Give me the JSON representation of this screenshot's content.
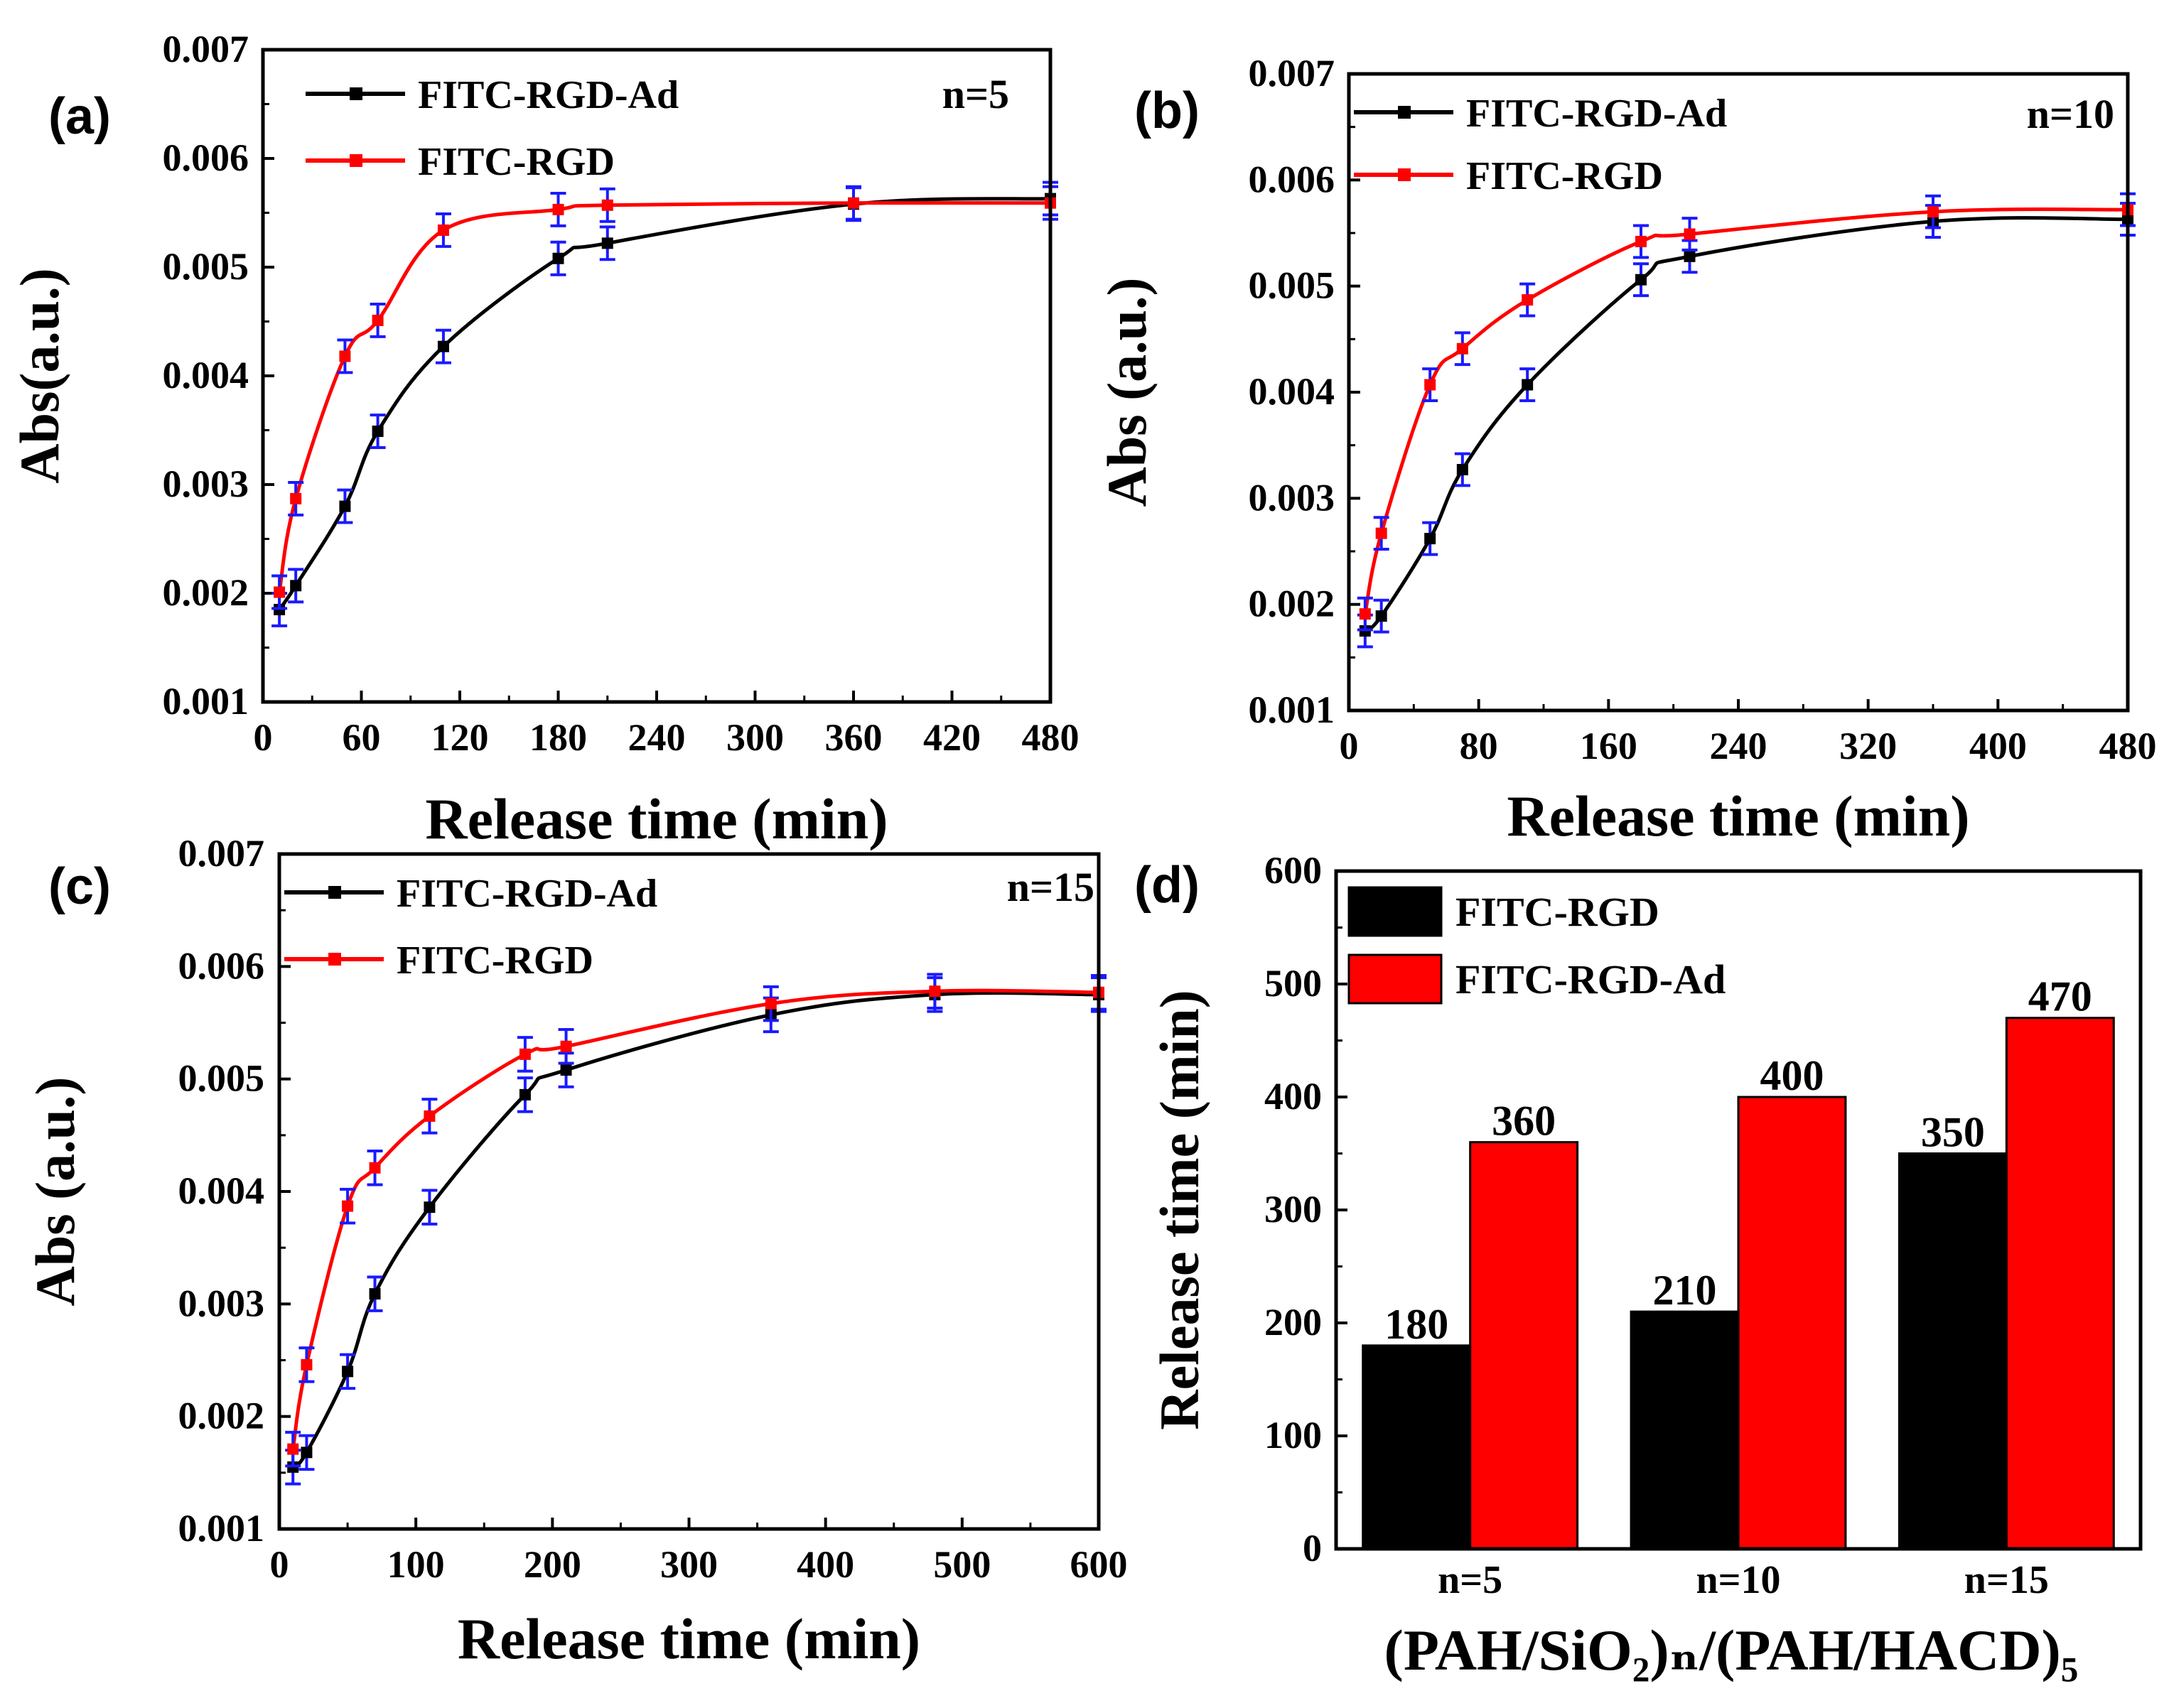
{
  "colors": {
    "black": "#000000",
    "red": "#ff0000",
    "error": "#1a1aff",
    "frame": "#000000"
  },
  "chart_data": [
    {
      "type": "line",
      "panel_label": "(a)",
      "title": "",
      "xlabel": "Release time (min)",
      "ylabel": "Abs(a.u.)",
      "xlim": [
        0,
        480
      ],
      "ylim": [
        0.001,
        0.007
      ],
      "xticks": [
        "0",
        "60",
        "120",
        "180",
        "240",
        "300",
        "360",
        "420",
        "480"
      ],
      "yticks": [
        "0.001",
        "0.002",
        "0.003",
        "0.004",
        "0.005",
        "0.006",
        "0.007"
      ],
      "annotation": "n=5",
      "legend_position": "top-left",
      "error": 0.00015,
      "series": [
        {
          "name": "FITC-RGD-Ad",
          "color": "#000000",
          "x": [
            10,
            20,
            50,
            70,
            110,
            180,
            210,
            360,
            480
          ],
          "y": [
            0.00185,
            0.00207,
            0.0028,
            0.00349,
            0.00427,
            0.00508,
            0.00522,
            0.00558,
            0.00563
          ]
        },
        {
          "name": "FITC-RGD",
          "color": "#ff0000",
          "x": [
            10,
            20,
            50,
            70,
            110,
            180,
            210,
            360,
            480
          ],
          "y": [
            0.00201,
            0.00287,
            0.00418,
            0.00451,
            0.00534,
            0.00553,
            0.00557,
            0.00559,
            0.00559
          ]
        }
      ]
    },
    {
      "type": "line",
      "panel_label": "(b)",
      "title": "",
      "xlabel": "Release time (min)",
      "ylabel": "Abs (a.u.)",
      "xlim": [
        0,
        480
      ],
      "ylim": [
        0.001,
        0.007
      ],
      "xticks": [
        "0",
        "80",
        "160",
        "240",
        "320",
        "400",
        "480"
      ],
      "yticks": [
        "0.001",
        "0.002",
        "0.003",
        "0.004",
        "0.005",
        "0.006",
        "0.007"
      ],
      "annotation": "n=10",
      "legend_position": "top-left",
      "error": 0.00015,
      "series": [
        {
          "name": "FITC-RGD-Ad",
          "color": "#000000",
          "x": [
            10,
            20,
            50,
            70,
            110,
            180,
            210,
            360,
            480
          ],
          "y": [
            0.00175,
            0.00189,
            0.00262,
            0.00327,
            0.00407,
            0.00506,
            0.00528,
            0.00561,
            0.00563
          ]
        },
        {
          "name": "FITC-RGD",
          "color": "#ff0000",
          "x": [
            10,
            20,
            50,
            70,
            110,
            180,
            210,
            360,
            480
          ],
          "y": [
            0.00191,
            0.00267,
            0.00407,
            0.00441,
            0.00487,
            0.00542,
            0.00549,
            0.0057,
            0.00572
          ]
        }
      ]
    },
    {
      "type": "line",
      "panel_label": "(c)",
      "title": "",
      "xlabel": "Release time (min)",
      "ylabel": "Abs (a.u.)",
      "xlim": [
        0,
        600
      ],
      "ylim": [
        0.001,
        0.007
      ],
      "xticks": [
        "0",
        "100",
        "200",
        "300",
        "400",
        "500",
        "600"
      ],
      "yticks": [
        "0.001",
        "0.002",
        "0.003",
        "0.004",
        "0.005",
        "0.006",
        "0.007"
      ],
      "annotation": "n=15",
      "legend_position": "top-left",
      "error": 0.00015,
      "series": [
        {
          "name": "FITC-RGD-Ad",
          "color": "#000000",
          "x": [
            10,
            20,
            50,
            70,
            110,
            180,
            210,
            360,
            480,
            600
          ],
          "y": [
            0.00155,
            0.00168,
            0.0024,
            0.00309,
            0.00386,
            0.00486,
            0.00508,
            0.00557,
            0.00575,
            0.00575
          ]
        },
        {
          "name": "FITC-RGD",
          "color": "#ff0000",
          "x": [
            10,
            20,
            50,
            70,
            110,
            180,
            210,
            360,
            480,
            600
          ],
          "y": [
            0.00171,
            0.00246,
            0.00387,
            0.00421,
            0.00467,
            0.00522,
            0.00529,
            0.00567,
            0.00578,
            0.00577
          ]
        }
      ]
    },
    {
      "type": "bar",
      "panel_label": "(d)",
      "title": "",
      "xlabel": "(PAH/SiO₂)ₙ/(PAH/HACD)₅",
      "ylabel": "Release time (min)",
      "ylim": [
        0,
        600
      ],
      "yticks": [
        "0",
        "100",
        "200",
        "300",
        "400",
        "500",
        "600"
      ],
      "categories": [
        "n=5",
        "n=10",
        "n=15"
      ],
      "legend_position": "top-left",
      "series": [
        {
          "name": "FITC-RGD",
          "color": "#000000",
          "values": [
            180,
            210,
            350
          ]
        },
        {
          "name": "FITC-RGD-Ad",
          "color": "#ff0000",
          "values": [
            360,
            400,
            470
          ]
        }
      ]
    }
  ]
}
